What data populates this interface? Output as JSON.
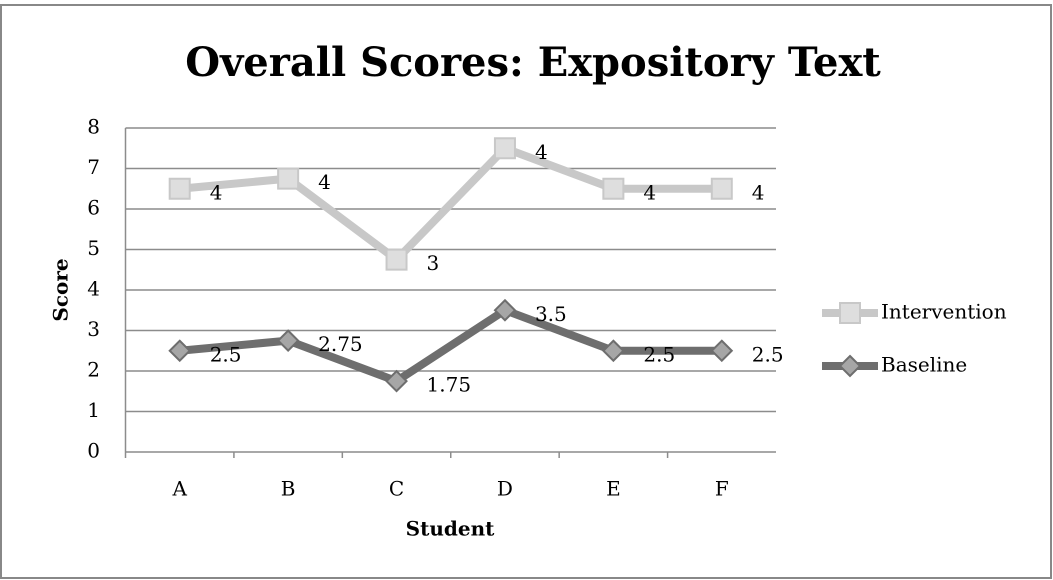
{
  "chart_data": {
    "type": "line",
    "stacked": true,
    "title": "Overall Scores: Expository Text",
    "x_label": "Student",
    "y_label": "Score",
    "categories": [
      "A",
      "B",
      "C",
      "D",
      "E",
      "F"
    ],
    "series": [
      {
        "name": "Baseline",
        "color": "#6e6e6e",
        "marker_color": "#a6a6a6",
        "marker": "diamond",
        "values": [
          2.5,
          2.75,
          1.75,
          3.5,
          2.5,
          2.5
        ]
      },
      {
        "name": "Intervention",
        "color": "#c8c8c8",
        "marker_color": "#dedede",
        "marker": "square",
        "values": [
          4,
          4,
          3,
          4,
          4,
          4
        ]
      }
    ],
    "ylim": [
      0,
      8
    ],
    "yticks": [
      0,
      1,
      2,
      3,
      4,
      5,
      6,
      7,
      8
    ],
    "grid": true,
    "legend": "right"
  }
}
